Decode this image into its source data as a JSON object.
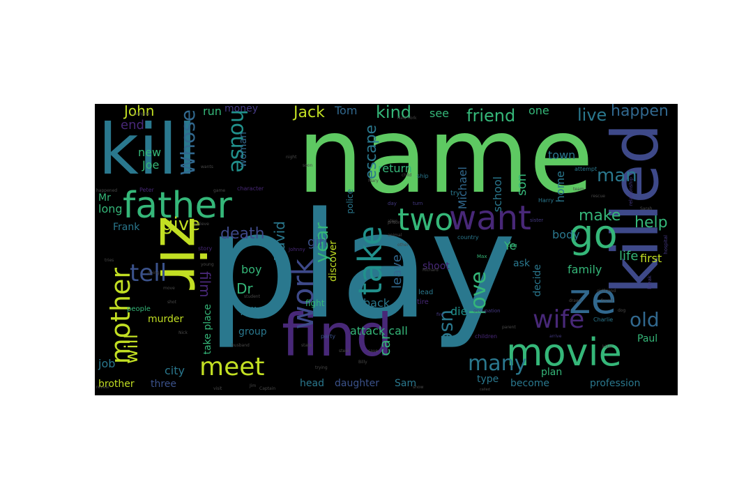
{
  "palette": {
    "green": "#5ec962",
    "teal": "#2a788e",
    "tealblue": "#31688e",
    "cyan": "#21918c",
    "seagreen": "#35b779",
    "yellow": "#c2df23",
    "lime": "#a0da39",
    "purple": "#443983",
    "indigo": "#3e4989",
    "violet": "#482878",
    "dark": "#440154",
    "navy": "#3b528b",
    "dimgray": "#4a4a4a"
  },
  "words": [
    {
      "id": "name",
      "text": "name",
      "color": "green",
      "rot": 0
    },
    {
      "id": "play",
      "text": "play",
      "color": "teal",
      "rot": 0
    },
    {
      "id": "kill",
      "text": "kill",
      "color": "teal",
      "rot": 0
    },
    {
      "id": "find",
      "text": "find",
      "color": "violet",
      "rot": 0
    },
    {
      "id": "zir",
      "text": "zir",
      "color": "yellow",
      "rot": 90
    },
    {
      "id": "killed",
      "text": "killed",
      "color": "indigo",
      "rot": -90
    },
    {
      "id": "father",
      "text": "father",
      "color": "seagreen",
      "rot": 0
    },
    {
      "id": "movie",
      "text": "movie",
      "color": "seagreen",
      "rot": 0
    },
    {
      "id": "ze",
      "text": "ze",
      "color": "tealblue",
      "rot": 0
    },
    {
      "id": "go",
      "text": "go",
      "color": "seagreen",
      "rot": 0
    },
    {
      "id": "want",
      "text": "want",
      "color": "violet",
      "rot": 0
    },
    {
      "id": "two",
      "text": "two",
      "color": "seagreen",
      "rot": 0
    },
    {
      "id": "take-a",
      "text": "take",
      "color": "cyan",
      "rot": -90
    },
    {
      "id": "work",
      "text": "work",
      "color": "indigo",
      "rot": -90
    },
    {
      "id": "meet",
      "text": "meet",
      "color": "yellow",
      "rot": 0
    },
    {
      "id": "wife",
      "text": "wife",
      "color": "violet",
      "rot": 0
    },
    {
      "id": "mother",
      "text": "mother",
      "color": "yellow",
      "rot": -90
    },
    {
      "id": "whose",
      "text": "Whose",
      "color": "tealblue",
      "rot": -90
    },
    {
      "id": "house",
      "text": "house",
      "color": "cyan",
      "rot": 90
    },
    {
      "id": "use",
      "text": "use",
      "color": "teal",
      "rot": 90
    },
    {
      "id": "love",
      "text": "love",
      "color": "seagreen",
      "rot": -90
    },
    {
      "id": "many",
      "text": "many",
      "color": "teal",
      "rot": 0
    },
    {
      "id": "old",
      "text": "old",
      "color": "tealblue",
      "rot": 0
    },
    {
      "id": "tell",
      "text": "tell",
      "color": "navy",
      "rot": 0
    },
    {
      "id": "will",
      "text": "will",
      "color": "yellow",
      "rot": -90
    },
    {
      "id": "man",
      "text": "man",
      "color": "teal",
      "rot": 0
    },
    {
      "id": "year",
      "text": "year",
      "color": "seagreen",
      "rot": -90
    },
    {
      "id": "escape",
      "text": "escape",
      "color": "teal",
      "rot": -90
    },
    {
      "id": "kind",
      "text": "kind",
      "color": "seagreen",
      "rot": 0
    },
    {
      "id": "friend",
      "text": "friend",
      "color": "seagreen",
      "rot": 0
    },
    {
      "id": "live",
      "text": "live",
      "color": "teal",
      "rot": 0
    },
    {
      "id": "happen",
      "text": "happen",
      "color": "tealblue",
      "rot": 0
    },
    {
      "id": "jack",
      "text": "Jack",
      "color": "yellow",
      "rot": 0
    },
    {
      "id": "john",
      "text": "John",
      "color": "yellow",
      "rot": 0
    },
    {
      "id": "help",
      "text": "help",
      "color": "seagreen",
      "rot": 0
    },
    {
      "id": "david",
      "text": "David",
      "color": "teal",
      "rot": -90
    },
    {
      "id": "give",
      "text": "give",
      "color": "yellow",
      "rot": 0
    },
    {
      "id": "make",
      "text": "make",
      "color": "seagreen",
      "rot": 0
    },
    {
      "id": "film",
      "text": "film",
      "color": "violet",
      "rot": 90
    },
    {
      "id": "death",
      "text": "death",
      "color": "indigo",
      "rot": 0
    },
    {
      "id": "end",
      "text": "end",
      "color": "violet",
      "rot": 0
    },
    {
      "id": "new",
      "text": "new",
      "color": "seagreen",
      "rot": 0
    },
    {
      "id": "joe",
      "text": "Joe",
      "color": "seagreen",
      "rot": 0
    },
    {
      "id": "money",
      "text": "money",
      "color": "purple",
      "rot": 0
    },
    {
      "id": "see",
      "text": "see",
      "color": "seagreen",
      "rot": 0
    },
    {
      "id": "one",
      "text": "one",
      "color": "seagreen",
      "rot": 0
    },
    {
      "id": "tom",
      "text": "Tom",
      "color": "tealblue",
      "rot": 0
    },
    {
      "id": "run",
      "text": "run",
      "color": "seagreen",
      "rot": 0
    },
    {
      "id": "return",
      "text": "return",
      "color": "seagreen",
      "rot": 0
    },
    {
      "id": "michael",
      "text": "Michael",
      "color": "tealblue",
      "rot": -90
    },
    {
      "id": "school",
      "text": "school",
      "color": "teal",
      "rot": -90
    },
    {
      "id": "son",
      "text": "son",
      "color": "seagreen",
      "rot": -90
    },
    {
      "id": "town",
      "text": "town",
      "color": "teal",
      "rot": 0
    },
    {
      "id": "home",
      "text": "home",
      "color": "teal",
      "rot": -90
    },
    {
      "id": "woman",
      "text": "woman",
      "color": "tealblue",
      "rot": -90
    },
    {
      "id": "police",
      "text": "police",
      "color": "teal",
      "rot": -90
    },
    {
      "id": "girl",
      "text": "girl",
      "color": "navy",
      "rot": 0
    },
    {
      "id": "dr",
      "text": "Dr",
      "color": "seagreen",
      "rot": 0
    },
    {
      "id": "boy",
      "text": "boy",
      "color": "seagreen",
      "rot": 0
    },
    {
      "id": "frank",
      "text": "Frank",
      "color": "teal",
      "rot": 0
    },
    {
      "id": "mr",
      "text": "Mr",
      "color": "seagreen",
      "rot": 0
    },
    {
      "id": "long",
      "text": "long",
      "color": "seagreen",
      "rot": 0
    },
    {
      "id": "body",
      "text": "body",
      "color": "teal",
      "rot": 0
    },
    {
      "id": "life",
      "text": "life",
      "color": "seagreen",
      "rot": 0
    },
    {
      "id": "first",
      "text": "first",
      "color": "yellow",
      "rot": 0
    },
    {
      "id": "ye",
      "text": "Ye",
      "color": "seagreen",
      "rot": 0
    },
    {
      "id": "ask",
      "text": "ask",
      "color": "teal",
      "rot": 0
    },
    {
      "id": "family",
      "text": "family",
      "color": "seagreen",
      "rot": 0
    },
    {
      "id": "decide",
      "text": "decide",
      "color": "teal",
      "rot": -90
    },
    {
      "id": "shoot",
      "text": "shoot",
      "color": "violet",
      "rot": 0
    },
    {
      "id": "leave",
      "text": "leave",
      "color": "tealblue",
      "rot": -90
    },
    {
      "id": "discover",
      "text": "discover",
      "color": "yellow",
      "rot": -90
    },
    {
      "id": "back",
      "text": "back",
      "color": "teal",
      "rot": 0
    },
    {
      "id": "die",
      "text": "die",
      "color": "cyan",
      "rot": 0
    },
    {
      "id": "attack-call",
      "text": "attack call",
      "color": "seagreen",
      "rot": 0
    },
    {
      "id": "car",
      "text": "car",
      "color": "seagreen",
      "rot": -90
    },
    {
      "id": "fall",
      "text": "fall",
      "color": "teal",
      "rot": 0
    },
    {
      "id": "group",
      "text": "group",
      "color": "teal",
      "rot": 0
    },
    {
      "id": "murder",
      "text": "murder",
      "color": "yellow",
      "rot": 0
    },
    {
      "id": "take-place",
      "text": "take place",
      "color": "seagreen",
      "rot": -90
    },
    {
      "id": "job",
      "text": "job",
      "color": "teal",
      "rot": 0
    },
    {
      "id": "city",
      "text": "city",
      "color": "teal",
      "rot": 0
    },
    {
      "id": "brother",
      "text": "brother",
      "color": "yellow",
      "rot": 0
    },
    {
      "id": "three",
      "text": "three",
      "color": "navy",
      "rot": 0
    },
    {
      "id": "head",
      "text": "head",
      "color": "teal",
      "rot": 0
    },
    {
      "id": "daughter",
      "text": "daughter",
      "color": "navy",
      "rot": 0
    },
    {
      "id": "sam",
      "text": "Sam",
      "color": "teal",
      "rot": 0
    },
    {
      "id": "type",
      "text": "type",
      "color": "teal",
      "rot": 0
    },
    {
      "id": "become",
      "text": "become",
      "color": "teal",
      "rot": 0
    },
    {
      "id": "plan",
      "text": "plan",
      "color": "seagreen",
      "rot": 0
    },
    {
      "id": "profession",
      "text": "profession",
      "color": "teal",
      "rot": 0
    },
    {
      "id": "paul",
      "text": "Paul",
      "color": "seagreen",
      "rot": 0
    },
    {
      "id": "fight",
      "text": "fight",
      "color": "seagreen",
      "rot": 0
    },
    {
      "id": "lead",
      "text": "lead",
      "color": "teal",
      "rot": 0
    },
    {
      "id": "tire",
      "text": "tire",
      "color": "violet",
      "rot": 0
    },
    {
      "id": "people",
      "text": "people",
      "color": "seagreen",
      "rot": 0
    },
    {
      "id": "story",
      "text": "story",
      "color": "violet",
      "rot": 0
    },
    {
      "id": "character",
      "text": "character",
      "color": "violet",
      "rot": 0
    },
    {
      "id": "ship",
      "text": "ship",
      "color": "teal",
      "rot": 0
    },
    {
      "id": "try",
      "text": "try",
      "color": "teal",
      "rot": 0
    },
    {
      "id": "country",
      "text": "country",
      "color": "teal",
      "rot": 0
    },
    {
      "id": "harry",
      "text": "Harry",
      "color": "teal",
      "rot": 0
    },
    {
      "id": "attempt",
      "text": "attempt",
      "color": "teal",
      "rot": 0
    },
    {
      "id": "king",
      "text": "King",
      "color": "seagreen",
      "rot": 0
    },
    {
      "id": "max",
      "text": "Max",
      "color": "seagreen",
      "rot": 0
    },
    {
      "id": "peter",
      "text": "Peter",
      "color": "violet",
      "rot": 0
    },
    {
      "id": "johnny",
      "text": "Johnny",
      "color": "violet",
      "rot": 0
    },
    {
      "id": "charlie",
      "text": "Charlie",
      "color": "teal",
      "rot": 0
    },
    {
      "id": "children",
      "text": "children",
      "color": "violet",
      "rot": 0
    },
    {
      "id": "party",
      "text": "party",
      "color": "navy",
      "rot": 0
    },
    {
      "id": "day",
      "text": "day",
      "color": "purple",
      "rot": 0
    },
    {
      "id": "turn",
      "text": "turn",
      "color": "purple",
      "rot": 0
    },
    {
      "id": "sister",
      "text": "sister",
      "color": "purple",
      "rot": 0
    },
    {
      "id": "relationship",
      "text": "relationship",
      "color": "purple",
      "rot": -90
    },
    {
      "id": "hospital",
      "text": "hospital",
      "color": "purple",
      "rot": -90
    },
    {
      "id": "occupation",
      "text": "occupation",
      "color": "purple",
      "rot": 0
    },
    {
      "id": "vampire",
      "text": "vampire",
      "color": "dimgray",
      "rot": 0
    },
    {
      "id": "new-york",
      "text": "New York",
      "color": "dimgray",
      "rot": 0
    },
    {
      "id": "happened",
      "text": "happened",
      "color": "dimgray",
      "rot": 0
    },
    {
      "id": "arrive",
      "text": "arrive",
      "color": "purple",
      "rot": 0
    },
    {
      "id": "fire",
      "text": "fire",
      "color": "purple",
      "rot": 0
    },
    {
      "id": "break",
      "text": "break",
      "color": "purple",
      "rot": -90
    },
    {
      "id": "killer",
      "text": "killer",
      "color": "dimgray",
      "rot": 0
    },
    {
      "id": "team",
      "text": "team",
      "color": "dimgray",
      "rot": 0
    },
    {
      "id": "trying",
      "text": "trying",
      "color": "dimgray",
      "rot": 0
    },
    {
      "id": "state",
      "text": "state",
      "color": "dimgray",
      "rot": 0
    },
    {
      "id": "steal",
      "text": "steal",
      "color": "dimgray",
      "rot": 0
    },
    {
      "id": "save",
      "text": "save",
      "color": "dimgray",
      "rot": 0
    },
    {
      "id": "sarah",
      "text": "Sarah",
      "color": "dimgray",
      "rot": 0
    },
    {
      "id": "mary",
      "text": "Mary",
      "color": "dimgray",
      "rot": 0
    },
    {
      "id": "billy",
      "text": "Billy",
      "color": "dimgray",
      "rot": 0
    },
    {
      "id": "nick",
      "text": "Nick",
      "color": "dimgray",
      "rot": 0
    },
    {
      "id": "called",
      "text": "called",
      "color": "dimgray",
      "rot": 0
    },
    {
      "id": "parent",
      "text": "parent",
      "color": "dimgray",
      "rot": 0
    },
    {
      "id": "found",
      "text": "found",
      "color": "dimgray",
      "rot": 0
    },
    {
      "id": "dog",
      "text": "dog",
      "color": "dimgray",
      "rot": 0
    },
    {
      "id": "prison",
      "text": "prison",
      "color": "dimgray",
      "rot": 0
    },
    {
      "id": "animal",
      "text": "animal",
      "color": "dimgray",
      "rot": 0
    },
    {
      "id": "snow",
      "text": "snow",
      "color": "dimgray",
      "rot": 0
    },
    {
      "id": "alien",
      "text": "alien",
      "color": "dimgray",
      "rot": 0
    },
    {
      "id": "rescue",
      "text": "rescue",
      "color": "dimgray",
      "rot": 0
    },
    {
      "id": "move",
      "text": "move",
      "color": "dimgray",
      "rot": 0
    },
    {
      "id": "shot",
      "text": "shot",
      "color": "dimgray",
      "rot": 0
    },
    {
      "id": "tries",
      "text": "tries",
      "color": "dimgray",
      "rot": 0
    },
    {
      "id": "believe",
      "text": "believe",
      "color": "dimgray",
      "rot": 0
    },
    {
      "id": "student",
      "text": "student",
      "color": "dimgray",
      "rot": 0
    },
    {
      "id": "girlfriend",
      "text": "girlfriend",
      "color": "dimgray",
      "rot": 0
    },
    {
      "id": "husband",
      "text": "husband",
      "color": "dimgray",
      "rot": 0
    },
    {
      "id": "reveal",
      "text": "reveal",
      "color": "dimgray",
      "rot": 0
    },
    {
      "id": "going",
      "text": "going",
      "color": "dimgray",
      "rot": 0
    },
    {
      "id": "young",
      "text": "young",
      "color": "dimgray",
      "rot": 0
    },
    {
      "id": "drawn",
      "text": "drawn",
      "color": "dimgray",
      "rot": 0
    },
    {
      "id": "richard",
      "text": "Richard",
      "color": "dimgray",
      "rot": 0
    },
    {
      "id": "game",
      "text": "game",
      "color": "dimgray",
      "rot": 0
    },
    {
      "id": "captain",
      "text": "Captain",
      "color": "dimgray",
      "rot": 0
    },
    {
      "id": "jim",
      "text": "Jim",
      "color": "dimgray",
      "rot": 0
    },
    {
      "id": "visit",
      "text": "visit",
      "color": "dimgray",
      "rot": 0
    },
    {
      "id": "wants",
      "text": "wants",
      "color": "dimgray",
      "rot": 0
    },
    {
      "id": "child",
      "text": "child",
      "color": "dimgray",
      "rot": 0
    },
    {
      "id": "other",
      "text": "other",
      "color": "dimgray",
      "rot": 0
    },
    {
      "id": "night",
      "text": "night",
      "color": "dimgray",
      "rot": 0
    },
    {
      "id": "soon",
      "text": "soon",
      "color": "dimgray",
      "rot": 0
    }
  ]
}
